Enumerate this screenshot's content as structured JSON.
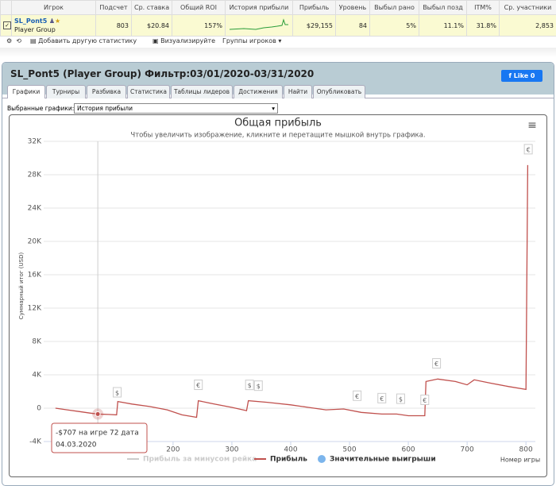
{
  "stats_table": {
    "headers": [
      "Игрок",
      "Подсчет",
      "Ср. ставка",
      "Общий ROI",
      "История прибыли",
      "Прибыль",
      "Уровень",
      "Выбыл рано",
      "Выбыл позд",
      "ITM%",
      "Ср. участники"
    ],
    "row": {
      "player": "SL_Pont5",
      "group": "Player Group",
      "cells": [
        803,
        "$20.84",
        "157%",
        "$29,155",
        84,
        "5%",
        "11.1%",
        "31.8%",
        "2,853"
      ]
    }
  },
  "toolbar": {
    "add_stat": "Добавить другую статистику",
    "visualize": "Визуализируйте",
    "groups": "Группы игроков"
  },
  "panel": {
    "title": "SL_Pont5 (Player Group) Фильтр:03/01/2020-03/31/2020",
    "like": "Like",
    "like_count": 0,
    "tabs": [
      "Графики",
      "Турниры",
      "Разбивка",
      "Статистика",
      "Таблицы лидеров",
      "Достижения",
      "Найти",
      "Опубликовать"
    ],
    "selected_label": "Выбранные графики:",
    "selected_value": "История прибыли"
  },
  "chart_data": {
    "type": "line",
    "title": "Общая прибыль",
    "subtitle": "Чтобы увеличить изображение, кликните и перетащите мышкой внутрь графика.",
    "y_label": "Суммарный итог (USD)",
    "x_label": "Номер игры",
    "xlim": [
      -20,
      816
    ],
    "xticks": [
      100,
      200,
      300,
      400,
      500,
      600,
      700,
      800
    ],
    "ylim": [
      -4000,
      32000
    ],
    "yticks": [
      {
        "value": -4000,
        "label": "-4K"
      },
      0,
      {
        "value": 4000,
        "label": "4K"
      },
      {
        "value": 8000,
        "label": "8K"
      },
      {
        "value": 12000,
        "label": "12K"
      },
      {
        "value": 16000,
        "label": "16K"
      },
      {
        "value": 20000,
        "label": "20K"
      },
      {
        "value": 24000,
        "label": "24K"
      },
      {
        "value": 28000,
        "label": "28K"
      },
      {
        "value": 32000,
        "label": "32K"
      }
    ],
    "grid": true,
    "series": [
      {
        "name": "Прибыль за минусом рейка",
        "color": "#cccccc",
        "visible": false
      },
      {
        "name": "Прибыль",
        "color": "#c0504d",
        "visible": true,
        "x": [
          0,
          20,
          40,
          60,
          72,
          90,
          104,
          106,
          130,
          160,
          190,
          215,
          240,
          243,
          270,
          300,
          325,
          328,
          360,
          400,
          430,
          460,
          490,
          520,
          555,
          580,
          600,
          628,
          630,
          650,
          680,
          700,
          712,
          740,
          770,
          800,
          803
        ],
        "values": [
          0,
          -200,
          -400,
          -600,
          -707,
          -750,
          -800,
          800,
          500,
          200,
          -200,
          -800,
          -1100,
          900,
          500,
          100,
          -300,
          900,
          700,
          400,
          100,
          -200,
          -100,
          -500,
          -700,
          -700,
          -900,
          -900,
          3200,
          3500,
          3200,
          2800,
          3400,
          3000,
          2600,
          2250,
          29155
        ]
      },
      {
        "name": "Значительные выигрыши",
        "color": "#7cb5ec",
        "visible": true,
        "x": [
          105,
          243,
          330,
          345,
          513,
          555,
          587,
          628,
          648,
          804
        ],
        "labels": [
          "$",
          "€",
          "$",
          "$",
          "€",
          "€",
          "$",
          "€",
          "€",
          "€"
        ]
      }
    ],
    "tooltip": {
      "x": 72,
      "value": -707,
      "text": "-$707 на игре 72 дата",
      "date": "04.03.2020"
    }
  }
}
